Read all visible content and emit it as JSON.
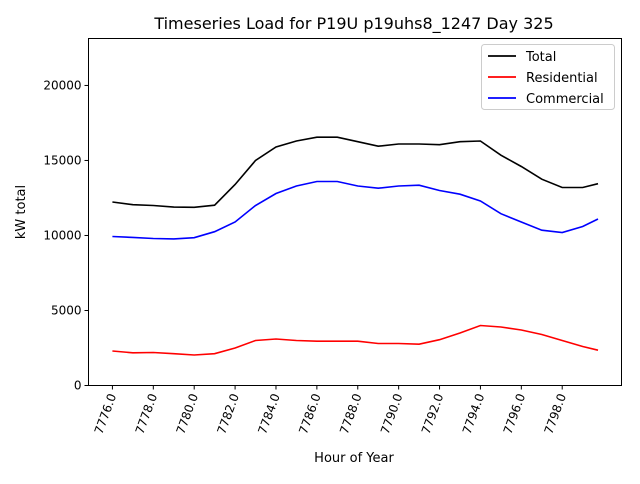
{
  "chart_data": {
    "type": "line",
    "title": "Timeseries Load for P19U p19uhs8_1247  Day 325",
    "xlabel": "Hour of Year",
    "ylabel": "kW total",
    "xlim": [
      7774.83,
      7800.9
    ],
    "ylim": [
      0,
      23130
    ],
    "xticks": [
      7776,
      7778,
      7780,
      7782,
      7784,
      7786,
      7788,
      7790,
      7792,
      7794,
      7796,
      7798
    ],
    "xtick_labels": [
      "7776.0",
      "7778.0",
      "7780.0",
      "7782.0",
      "7784.0",
      "7786.0",
      "7788.0",
      "7790.0",
      "7792.0",
      "7794.0",
      "7796.0",
      "7798.0"
    ],
    "yticks": [
      0,
      5000,
      10000,
      15000,
      20000
    ],
    "ytick_labels": [
      "0",
      "5000",
      "10000",
      "15000",
      "20000"
    ],
    "grid": false,
    "legend_position": "top-right",
    "x": [
      7776,
      7777,
      7778,
      7779,
      7780,
      7781,
      7782,
      7783,
      7784,
      7785,
      7786,
      7787,
      7788,
      7789,
      7790,
      7791,
      7792,
      7793,
      7794,
      7795,
      7796,
      7797,
      7798,
      7799,
      7799.75
    ],
    "series": [
      {
        "name": "Total",
        "color": "#000000",
        "values": [
          12230,
          12050,
          12000,
          11890,
          11880,
          12020,
          13400,
          15000,
          15900,
          16300,
          16550,
          16550,
          16250,
          15950,
          16100,
          16100,
          16050,
          16250,
          16300,
          15350,
          14600,
          13750,
          13200,
          13200,
          13450
        ]
      },
      {
        "name": "Residential",
        "color": "#ff0000",
        "values": [
          2300,
          2180,
          2200,
          2120,
          2030,
          2120,
          2500,
          3000,
          3100,
          3000,
          2950,
          2950,
          2950,
          2800,
          2800,
          2750,
          3050,
          3500,
          4000,
          3900,
          3700,
          3400,
          3000,
          2600,
          2350
        ]
      },
      {
        "name": "Commercial",
        "color": "#0000ff",
        "values": [
          9930,
          9870,
          9800,
          9770,
          9850,
          10250,
          10900,
          12000,
          12800,
          13300,
          13600,
          13600,
          13300,
          13150,
          13300,
          13350,
          13000,
          12750,
          12300,
          11450,
          10900,
          10350,
          10200,
          10600,
          11100
        ]
      }
    ]
  }
}
